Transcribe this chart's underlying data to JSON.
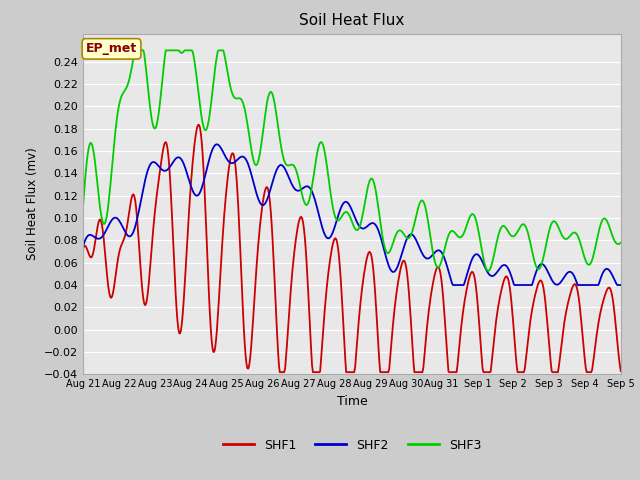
{
  "title": "Soil Heat Flux",
  "xlabel": "Time",
  "ylabel": "Soil Heat Flux (mv)",
  "ylim": [
    -0.04,
    0.265
  ],
  "yticks": [
    -0.04,
    -0.02,
    0.0,
    0.02,
    0.04,
    0.06,
    0.08,
    0.1,
    0.12,
    0.14,
    0.16,
    0.18,
    0.2,
    0.22,
    0.24
  ],
  "legend_labels": [
    "SHF1",
    "SHF2",
    "SHF3"
  ],
  "shf1_color": "#cc0000",
  "shf2_color": "#0000cc",
  "shf3_color": "#00cc00",
  "annotation_text": "EP_met",
  "annotation_fg": "#880000",
  "annotation_bg": "#ffffcc",
  "annotation_border": "#aa8800",
  "fig_bg": "#cccccc",
  "plot_bg": "#e8e8e8",
  "grid_color": "#ffffff",
  "x_tick_labels": [
    "Aug 21",
    "Aug 22",
    "Aug 23",
    "Aug 24",
    "Aug 25",
    "Aug 26",
    "Aug 27",
    "Aug 28",
    "Aug 29",
    "Aug 30",
    "Aug 31",
    "Sep 1",
    "Sep 2",
    "Sep 3",
    "Sep 4",
    "Sep 5"
  ]
}
